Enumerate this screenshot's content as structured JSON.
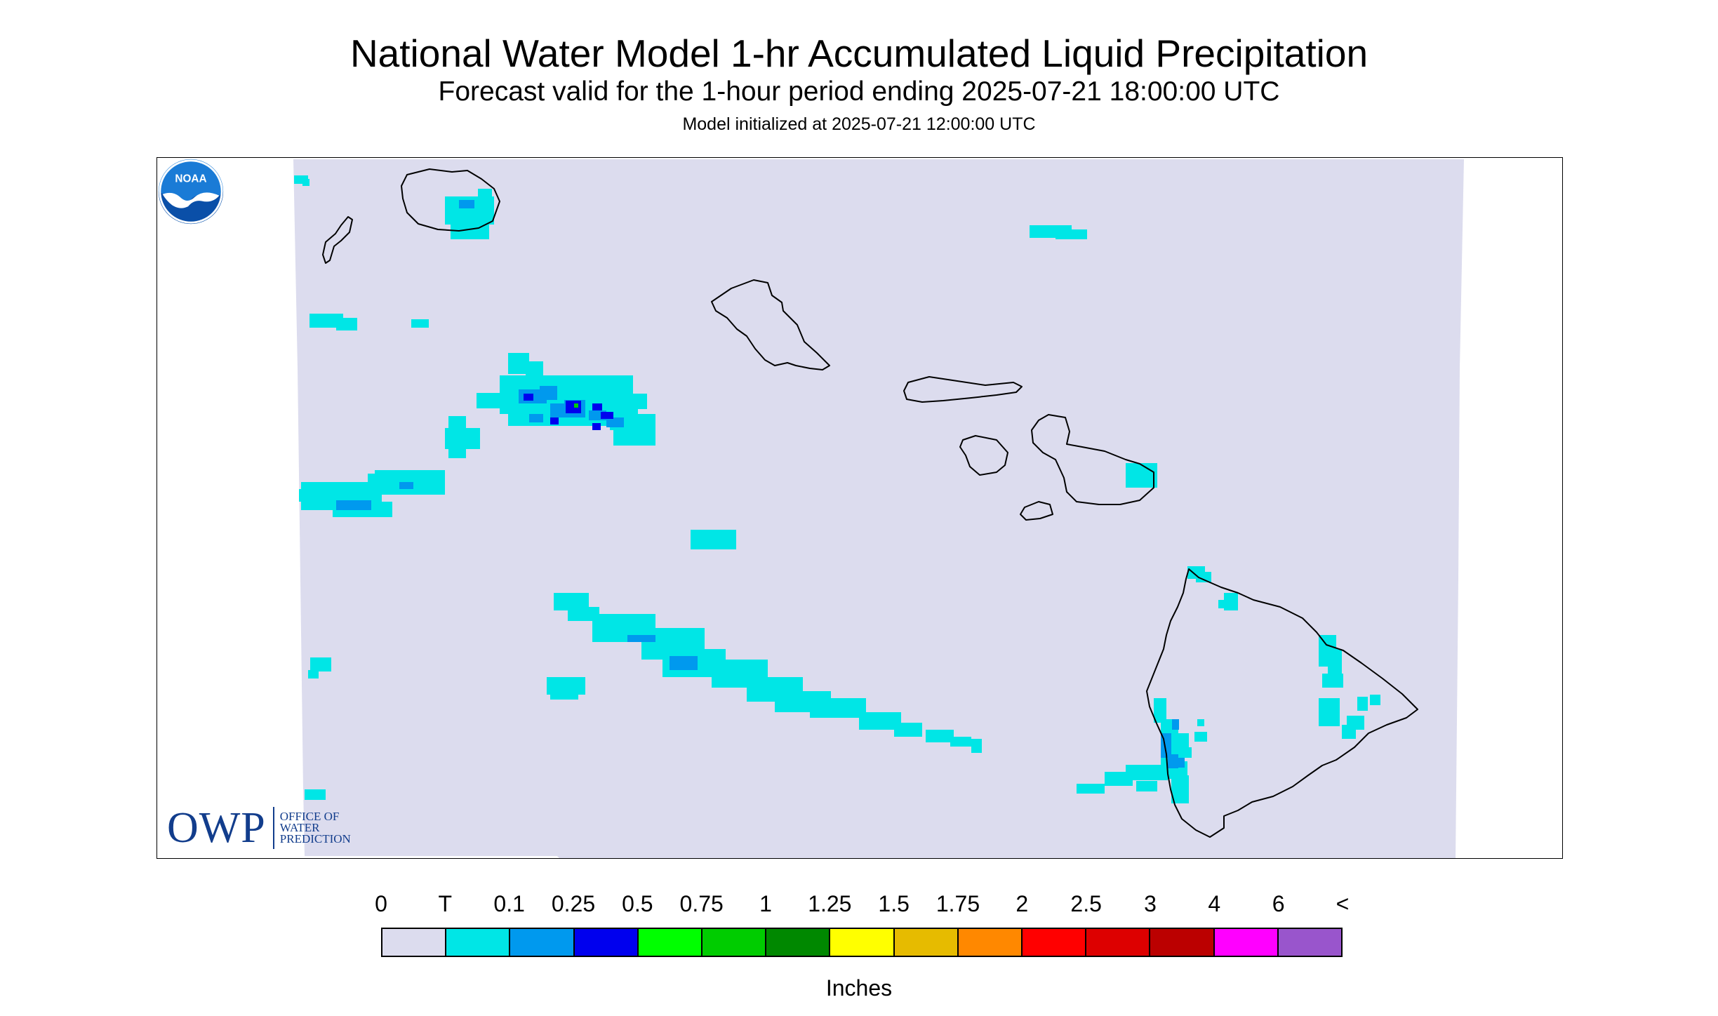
{
  "header": {
    "title": "National Water Model 1-hr Accumulated Liquid Precipitation",
    "subtitle": "Forecast valid for the 1-hour period ending 2025-07-21 18:00:00 UTC",
    "init": "Model initialized at 2025-07-21 12:00:00 UTC"
  },
  "logos": {
    "owp_mark": "OWP",
    "owp_line1": "OFFICE OF",
    "owp_line2": "WATER",
    "owp_line3": "PREDICTION",
    "noaa": "NOAA"
  },
  "legend": {
    "unit": "Inches",
    "labels": [
      "0",
      "T",
      "0.1",
      "0.25",
      "0.5",
      "0.75",
      "1",
      "1.25",
      "1.5",
      "1.75",
      "2",
      "2.5",
      "3",
      "4",
      "6",
      "<"
    ],
    "colors": [
      "#dcdcee",
      "#00e6e6",
      "#0099ee",
      "#0000ee",
      "#00ff00",
      "#00cc00",
      "#008800",
      "#ffff00",
      "#e6bb00",
      "#ff8800",
      "#ff0000",
      "#dd0000",
      "#bb0000",
      "#ff00ff",
      "#9955cc"
    ]
  },
  "map": {
    "domain_color": "#dcdcee",
    "outline_color": "#000000"
  }
}
